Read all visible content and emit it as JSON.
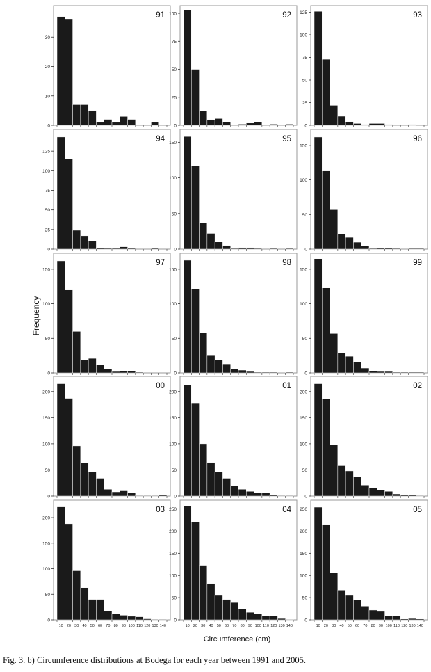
{
  "caption": "Fig. 3. b) Circumference distributions at Bodega for each year between 1991 and 2005.",
  "chart_data": {
    "type": "bar",
    "ylabel": "Frequency",
    "xlabel": "Circumference (cm)",
    "x_tick_labels": [
      "10",
      "20",
      "30",
      "40",
      "50",
      "60",
      "70",
      "80",
      "90",
      "100",
      "110",
      "120",
      "130",
      "140"
    ],
    "bin_starts": [
      10,
      20,
      30,
      40,
      50,
      60,
      70,
      80,
      90,
      100,
      110,
      120,
      130,
      140
    ],
    "panels": [
      {
        "label": "91",
        "ylim": [
          0,
          40
        ],
        "yticks": [
          0,
          10,
          20,
          30
        ],
        "values": [
          37,
          36,
          7,
          7,
          5,
          1,
          2,
          1,
          3,
          2,
          0,
          0,
          1,
          0
        ]
      },
      {
        "label": "92",
        "ylim": [
          0,
          105
        ],
        "yticks": [
          0,
          25,
          50,
          75,
          100
        ],
        "values": [
          103,
          50,
          13,
          5,
          6,
          3,
          0,
          1,
          2,
          3,
          0,
          1,
          0,
          1
        ]
      },
      {
        "label": "93",
        "ylim": [
          0,
          130
        ],
        "yticks": [
          0,
          25,
          50,
          75,
          100,
          125
        ],
        "values": [
          126,
          73,
          22,
          10,
          4,
          2,
          1,
          2,
          2,
          1,
          0,
          0,
          1,
          0
        ]
      },
      {
        "label": "94",
        "ylim": [
          0,
          150
        ],
        "yticks": [
          0,
          25,
          50,
          75,
          100,
          125
        ],
        "values": [
          143,
          115,
          24,
          17,
          10,
          2,
          1,
          1,
          3,
          1,
          0,
          0,
          1,
          0
        ]
      },
      {
        "label": "95",
        "ylim": [
          0,
          165
        ],
        "yticks": [
          0,
          50,
          100,
          150
        ],
        "values": [
          158,
          117,
          37,
          22,
          10,
          5,
          1,
          2,
          2,
          1,
          0,
          1,
          0,
          1
        ]
      },
      {
        "label": "96",
        "ylim": [
          0,
          170
        ],
        "yticks": [
          0,
          50,
          100,
          150
        ],
        "values": [
          162,
          113,
          57,
          22,
          17,
          10,
          5,
          1,
          2,
          2,
          1,
          0,
          1,
          1
        ]
      },
      {
        "label": "97",
        "ylim": [
          0,
          170
        ],
        "yticks": [
          0,
          50,
          100,
          150
        ],
        "values": [
          162,
          120,
          60,
          19,
          21,
          12,
          6,
          2,
          3,
          3,
          1,
          0,
          0,
          0
        ]
      },
      {
        "label": "98",
        "ylim": [
          0,
          170
        ],
        "yticks": [
          0,
          50,
          100,
          150
        ],
        "values": [
          163,
          121,
          58,
          25,
          19,
          13,
          6,
          4,
          2,
          1,
          1,
          1,
          0,
          1
        ]
      },
      {
        "label": "99",
        "ylim": [
          0,
          170
        ],
        "yticks": [
          0,
          50,
          100,
          150
        ],
        "values": [
          165,
          123,
          57,
          29,
          24,
          16,
          7,
          3,
          2,
          2,
          1,
          1,
          1,
          1
        ]
      },
      {
        "label": "00",
        "ylim": [
          0,
          225
        ],
        "yticks": [
          0,
          50,
          100,
          150,
          200
        ],
        "values": [
          215,
          187,
          96,
          63,
          46,
          34,
          13,
          8,
          10,
          6,
          1,
          1,
          1,
          2
        ]
      },
      {
        "label": "01",
        "ylim": [
          0,
          225
        ],
        "yticks": [
          0,
          50,
          100,
          150,
          200
        ],
        "values": [
          213,
          177,
          100,
          64,
          46,
          34,
          20,
          13,
          9,
          7,
          6,
          2,
          1,
          1
        ]
      },
      {
        "label": "02",
        "ylim": [
          0,
          225
        ],
        "yticks": [
          0,
          50,
          100,
          150,
          200
        ],
        "values": [
          215,
          186,
          98,
          58,
          48,
          37,
          21,
          16,
          11,
          9,
          4,
          3,
          2,
          1
        ]
      },
      {
        "label": "03",
        "ylim": [
          0,
          230
        ],
        "yticks": [
          0,
          50,
          100,
          150,
          200
        ],
        "values": [
          221,
          188,
          96,
          63,
          40,
          40,
          17,
          12,
          9,
          7,
          6,
          2,
          1,
          1
        ]
      },
      {
        "label": "04",
        "ylim": [
          0,
          265
        ],
        "yticks": [
          0,
          50,
          100,
          150,
          200,
          250
        ],
        "values": [
          256,
          221,
          123,
          82,
          55,
          46,
          39,
          25,
          17,
          14,
          9,
          9,
          3,
          1
        ]
      },
      {
        "label": "05",
        "ylim": [
          0,
          265
        ],
        "yticks": [
          0,
          50,
          100,
          150,
          200,
          250
        ],
        "values": [
          254,
          215,
          106,
          67,
          55,
          45,
          31,
          22,
          19,
          9,
          9,
          2,
          3,
          2
        ]
      }
    ]
  }
}
